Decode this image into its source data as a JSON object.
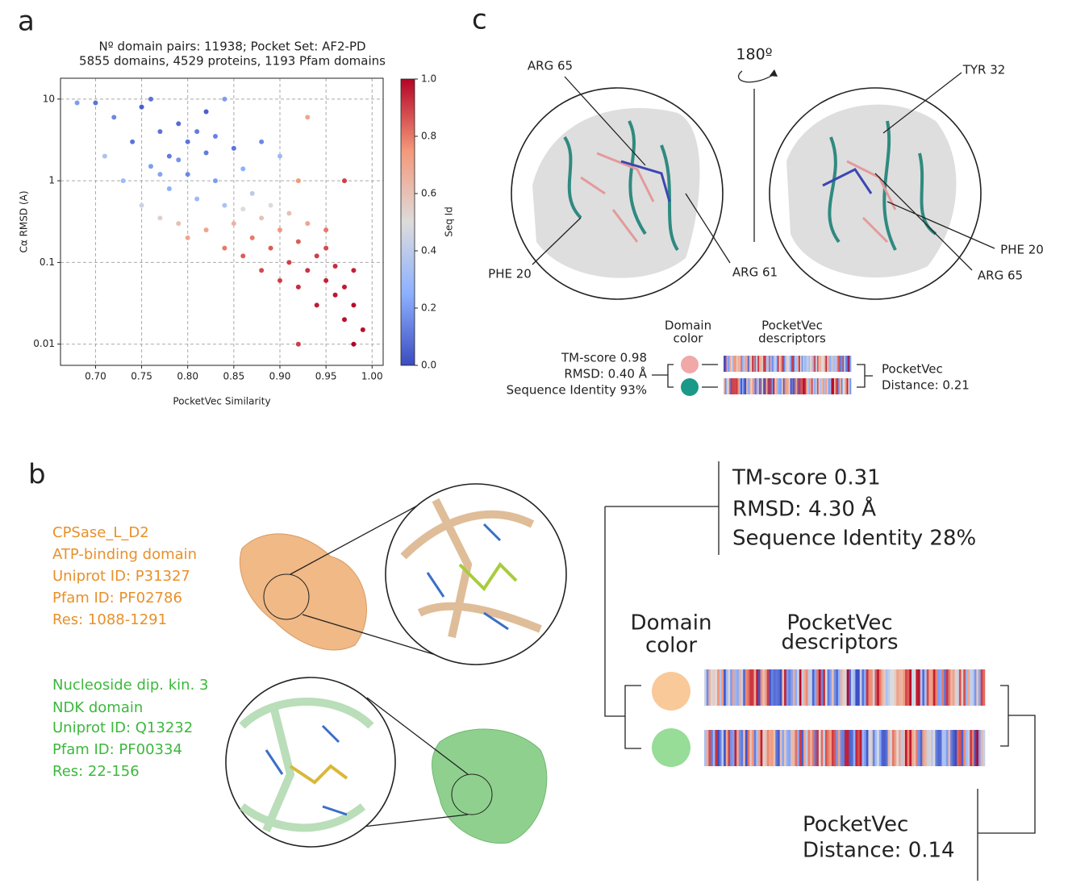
{
  "chart_data": {
    "type": "scatter",
    "panel": "a",
    "title": [
      "Nº domain pairs: 11938; Pocket Set: AF2-PD",
      "5855 domains, 4529 proteins, 1193 Pfam domains"
    ],
    "xlabel": "PocketVec Similarity",
    "ylabel": "Cα RMSD (A)",
    "colorbar_label": "Seq Id",
    "colormap": "coolwarm",
    "log_y": true,
    "grid": true,
    "xlim": [
      0.662,
      1.012
    ],
    "ylim": [
      0.0055,
      18
    ],
    "xticks": [
      {
        "value": 0.7,
        "label": "0.70"
      },
      0.75,
      {
        "value": 0.8,
        "label": "0.80"
      },
      0.85,
      {
        "value": 0.9,
        "label": "0.90"
      },
      0.95,
      {
        "value": 1.0,
        "label": "1.00"
      }
    ],
    "yticks": [
      10,
      1,
      0.1,
      0.01
    ],
    "clim": [
      0,
      1
    ],
    "cticks": [
      {
        "value": 0,
        "label": "0.0"
      },
      0.2,
      0.4,
      0.6,
      0.8,
      {
        "value": 1,
        "label": "1.0"
      }
    ],
    "x": [
      0.7,
      0.72,
      0.74,
      0.75,
      0.76,
      0.77,
      0.78,
      0.78,
      0.79,
      0.8,
      0.8,
      0.81,
      0.82,
      0.82,
      0.83,
      0.84,
      0.85,
      0.86,
      0.87,
      0.88,
      0.73,
      0.75,
      0.77,
      0.79,
      0.76,
      0.84,
      0.9,
      0.92,
      0.93,
      0.68,
      0.71,
      0.79,
      0.81,
      0.83,
      0.77,
      0.82,
      0.85,
      0.87,
      0.88,
      0.89,
      0.9,
      0.91,
      0.92,
      0.93,
      0.94,
      0.95,
      0.95,
      0.96,
      0.96,
      0.97,
      0.97,
      0.98,
      0.98,
      0.99,
      0.94,
      0.92,
      0.9,
      0.88,
      0.86,
      0.84,
      0.8,
      0.91,
      0.93,
      0.97,
      0.98,
      0.92,
      0.89,
      0.86,
      0.95
    ],
    "y": [
      9,
      6,
      3,
      8,
      1.5,
      4,
      2,
      0.8,
      5,
      1.2,
      3,
      0.6,
      2.2,
      7,
      1,
      0.5,
      2.5,
      1.4,
      0.7,
      3,
      1,
      0.5,
      0.35,
      0.3,
      10,
      10,
      2,
      1,
      6,
      9,
      2,
      1.8,
      4,
      3.5,
      1.2,
      0.25,
      0.3,
      0.2,
      0.35,
      0.15,
      0.25,
      0.1,
      0.18,
      0.08,
      0.12,
      0.06,
      0.15,
      0.04,
      0.09,
      0.05,
      0.02,
      0.03,
      0.08,
      0.015,
      0.03,
      0.05,
      0.06,
      0.08,
      0.12,
      0.15,
      0.2,
      0.4,
      0.3,
      1,
      0.01,
      0.01,
      0.5,
      0.45,
      0.25
    ],
    "seq_id": [
      0.1,
      0.15,
      0.1,
      0.05,
      0.2,
      0.1,
      0.12,
      0.25,
      0.08,
      0.15,
      0.1,
      0.3,
      0.12,
      0.05,
      0.2,
      0.35,
      0.1,
      0.25,
      0.4,
      0.15,
      0.3,
      0.45,
      0.55,
      0.6,
      0.1,
      0.2,
      0.3,
      0.75,
      0.7,
      0.2,
      0.35,
      0.18,
      0.12,
      0.14,
      0.22,
      0.7,
      0.65,
      0.8,
      0.6,
      0.85,
      0.75,
      0.9,
      0.85,
      0.92,
      0.9,
      0.95,
      0.88,
      0.97,
      0.93,
      0.96,
      0.98,
      0.99,
      0.95,
      0.98,
      0.96,
      0.93,
      0.9,
      0.88,
      0.85,
      0.8,
      0.7,
      0.6,
      0.7,
      0.9,
      1.0,
      0.9,
      0.5,
      0.5,
      0.8
    ]
  },
  "panel_c": {
    "label": "c",
    "rotation": "180º",
    "left_residues": [
      "ARG 65",
      "PHE 20",
      "ARG 61"
    ],
    "right_residues": [
      "TYR 32",
      "PHE 20",
      "ARG 65"
    ],
    "legend": {
      "domain_color": [
        "Domain",
        "color"
      ],
      "descriptors": [
        "PocketVec",
        "descriptors"
      ]
    },
    "metrics": [
      "TM-score 0.98",
      "RMSD: 0.40 Å",
      "Sequence Identity 93%"
    ],
    "distance": [
      "PocketVec",
      "Distance: 0.21"
    ]
  },
  "panel_b": {
    "label": "b",
    "domain1": [
      "CPSase_L_D2",
      "ATP-binding domain",
      "Uniprot ID: P31327",
      "Pfam ID: PF02786",
      "Res: 1088-1291"
    ],
    "domain2": [
      "Nucleoside dip. kin. 3",
      "NDK domain",
      "Uniprot ID: Q13232",
      "Pfam ID: PF00334",
      "Res: 22-156"
    ],
    "metrics": [
      "TM-score 0.31",
      "RMSD: 4.30 Å",
      "Sequence Identity 28%"
    ],
    "legend": {
      "domain_color": [
        "Domain",
        "color"
      ],
      "descriptors": [
        "PocketVec",
        "descriptors"
      ]
    },
    "distance": [
      "PocketVec",
      "Distance: 0.14"
    ]
  }
}
